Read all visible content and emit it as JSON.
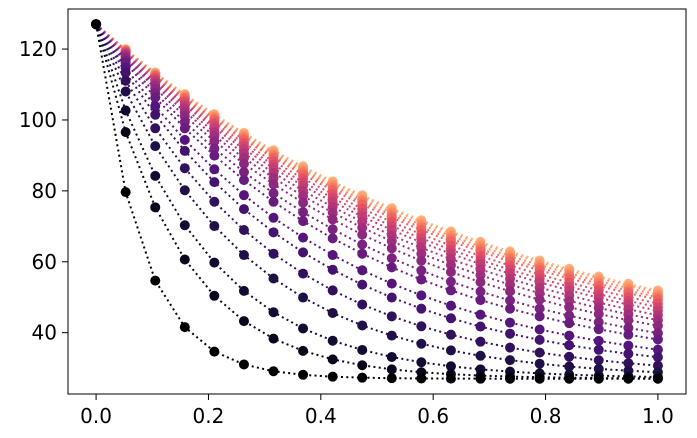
{
  "chart_data": {
    "type": "line",
    "title": "",
    "xlabel": "",
    "ylabel": "",
    "xlim": [
      -0.05,
      1.05
    ],
    "ylim": [
      22.7,
      131.3
    ],
    "x_ticks": [
      0.0,
      0.2,
      0.4,
      0.6,
      0.8,
      1.0
    ],
    "x_tick_labels": [
      "0.0",
      "0.2",
      "0.4",
      "0.6",
      "0.8",
      "1.0"
    ],
    "y_ticks": [
      40,
      60,
      80,
      100,
      120
    ],
    "y_tick_labels": [
      "40",
      "60",
      "80",
      "100",
      "120"
    ],
    "grid": false,
    "legend": "none",
    "line_style": "dotted",
    "marker": "circle",
    "colormap": [
      "#000004",
      "#1c1044",
      "#4f127b",
      "#812581",
      "#b5367a",
      "#e55064",
      "#fb8761",
      "#fec287",
      "#fcfdbf"
    ],
    "x": [
      0,
      0.0526,
      0.1053,
      0.1579,
      0.2105,
      0.2632,
      0.3158,
      0.3684,
      0.4211,
      0.4737,
      0.5263,
      0.5789,
      0.6316,
      0.6842,
      0.7368,
      0.7895,
      0.8421,
      0.8947,
      0.9474,
      1.0
    ],
    "y_start": 127,
    "y_floor": 27,
    "decay_rates": [
      12.2,
      6.9,
      5.3,
      4.0,
      3.3,
      2.8,
      2.5,
      2.2,
      2.05,
      1.9,
      1.8,
      1.72,
      1.65,
      1.6,
      1.55,
      1.5,
      1.47,
      1.44,
      1.41,
      1.39
    ]
  }
}
